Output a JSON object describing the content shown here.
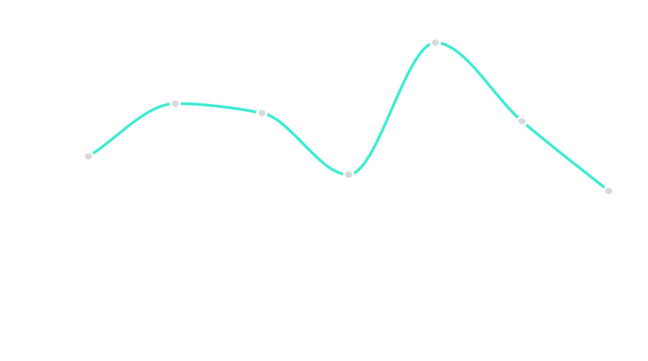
{
  "chart_data": {
    "type": "line",
    "title": "",
    "xlabel": "",
    "ylabel": "",
    "x": [
      1,
      2,
      3,
      4,
      5,
      6,
      7
    ],
    "series": [
      {
        "values": [
          56.7,
          71.3,
          68.7,
          51.6,
          88.2,
          66.4,
          47.1
        ]
      }
    ],
    "xlim": [
      1,
      7
    ],
    "ylim": [
      0,
      100
    ],
    "grid": false,
    "legend": "none",
    "smooth": true,
    "axes_visible": false
  },
  "colors": {
    "line": "#40ebd4",
    "marker": "#d9d9d9",
    "background": "#ffffff"
  }
}
